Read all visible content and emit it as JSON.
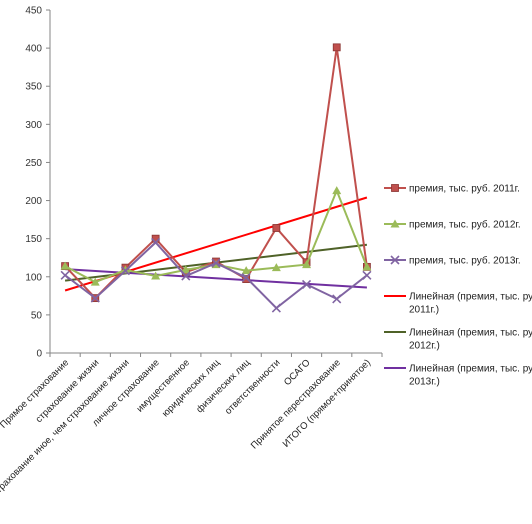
{
  "chart_data": {
    "type": "line",
    "categories": [
      "Прямое страхование",
      "страхование жизни",
      "страхование иное, чем страхование жизни",
      "личное страхование",
      "имущественное",
      "юридических лиц",
      "физических лиц",
      "ответственности",
      "ОСАГО",
      "Принятое перестрахование",
      "ИТОГО (прямое+принятое)"
    ],
    "ylim": [
      0,
      450
    ],
    "yticks": [
      0,
      50,
      100,
      150,
      200,
      250,
      300,
      350,
      400,
      450
    ],
    "grid": false,
    "legend_position": "right",
    "series": [
      {
        "name": "премия, тыс. руб. 2011г.",
        "color": "#C0504D",
        "marker": "square",
        "values": [
          114,
          72,
          112,
          150,
          106,
          120,
          97,
          164,
          119,
          401,
          113
        ]
      },
      {
        "name": "премия, тыс. руб. 2012г.",
        "color": "#9BBB59",
        "marker": "triangle",
        "values": [
          114,
          93,
          109,
          101,
          109,
          116,
          108,
          112,
          116,
          213,
          113
        ]
      },
      {
        "name": "премия, тыс. руб. 2013г.",
        "color": "#8064A2",
        "marker": "x",
        "values": [
          102,
          72,
          108,
          145,
          101,
          118,
          99,
          59,
          90,
          71,
          102
        ]
      }
    ],
    "trendlines": [
      {
        "name": "Линейная (премия, тыс. руб. 2011г.)",
        "color": "#FF0000",
        "start": 82,
        "end": 204
      },
      {
        "name": "Линейная (премия, тыс. руб. 2012г.)",
        "color": "#4F6228",
        "start": 95,
        "end": 142
      },
      {
        "name": "Линейная (премия, тыс. руб. 2013г.)",
        "color": "#7030A0",
        "start": 110,
        "end": 86
      }
    ],
    "legend": [
      {
        "lines": [
          "премия, тыс. руб. 2011г."
        ]
      },
      {
        "lines": [
          "премия, тыс. руб. 2012г."
        ]
      },
      {
        "lines": [
          "премия, тыс. руб. 2013г."
        ]
      },
      {
        "lines": [
          "Линейная (премия, тыс. руб.",
          "2011г.)"
        ]
      },
      {
        "lines": [
          "Линейная (премия, тыс. руб.",
          "2012г.)"
        ]
      },
      {
        "lines": [
          "Линейная (премия, тыс. руб.",
          "2013г.)"
        ]
      }
    ]
  }
}
